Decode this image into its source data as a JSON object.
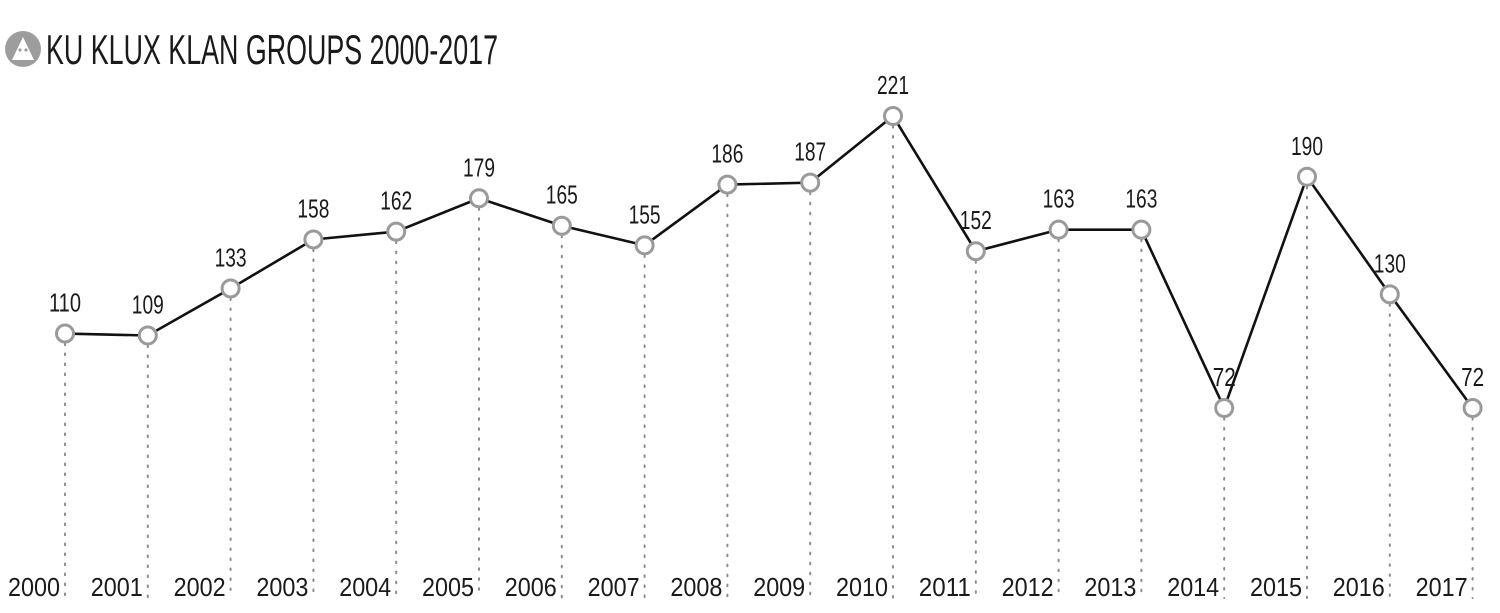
{
  "colors": {
    "line": "#111111",
    "marker_stroke": "#9a9a9a",
    "marker_fill": "#ffffff",
    "dots": "#8c8c8c",
    "icon": "#9d9d9d",
    "text": "#1a1a1a"
  },
  "icon": "hooded-figure-icon",
  "chart_data": {
    "type": "line",
    "title": "KU KLUX KLAN GROUPS 2000-2017",
    "xlabel": "",
    "ylabel": "",
    "categories": [
      "2000",
      "2001",
      "2002",
      "2003",
      "2004",
      "2005",
      "2006",
      "2007",
      "2008",
      "2009",
      "2010",
      "2011",
      "2012",
      "2013",
      "2014",
      "2015",
      "2016",
      "2017"
    ],
    "series": [
      {
        "values": [
          110,
          109,
          133,
          158,
          162,
          179,
          165,
          155,
          186,
          187,
          221,
          152,
          163,
          163,
          72,
          190,
          130,
          72
        ]
      }
    ],
    "data_labels": true,
    "grid": "dotted vertical drop lines",
    "legend": "none"
  }
}
